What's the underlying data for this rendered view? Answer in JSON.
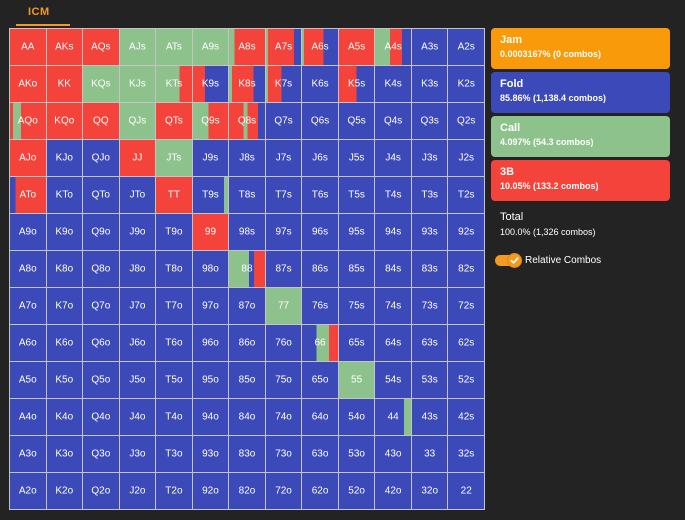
{
  "tab": {
    "label": "ICM"
  },
  "colors": {
    "jam": "#f99a0a",
    "fold": "#3c49b9",
    "call": "#8ec28c",
    "raise": "#f4433a",
    "accent": "#f39a21"
  },
  "legend": [
    {
      "key": "jam",
      "name": "Jam",
      "stat": "0.0003167% (0 combos)"
    },
    {
      "key": "fold",
      "name": "Fold",
      "stat": "85.86% (1,138.4 combos)"
    },
    {
      "key": "call",
      "name": "Call",
      "stat": "4.097% (54.3 combos)"
    },
    {
      "key": "raise",
      "name": "3B",
      "stat": "10.05% (133.2 combos)"
    }
  ],
  "total": {
    "label": "Total",
    "stat": "100.0% (1,326 combos)"
  },
  "toggle": {
    "label": "Relative Combos",
    "on": true,
    "icon": "check-icon"
  },
  "grid": {
    "rows": [
      [
        "AA",
        "AKs",
        "AQs",
        "AJs",
        "ATs",
        "A9s",
        "A8s",
        "A7s",
        "A6s",
        "A5s",
        "A4s",
        "A3s",
        "A2s"
      ],
      [
        "AKo",
        "KK",
        "KQs",
        "KJs",
        "KTs",
        "K9s",
        "K8s",
        "K7s",
        "K6s",
        "K5s",
        "K4s",
        "K3s",
        "K2s"
      ],
      [
        "AQo",
        "KQo",
        "QQ",
        "QJs",
        "QTs",
        "Q9s",
        "Q8s",
        "Q7s",
        "Q6s",
        "Q5s",
        "Q4s",
        "Q3s",
        "Q2s"
      ],
      [
        "AJo",
        "KJo",
        "QJo",
        "JJ",
        "JTs",
        "J9s",
        "J8s",
        "J7s",
        "J6s",
        "J5s",
        "J4s",
        "J3s",
        "J2s"
      ],
      [
        "ATo",
        "KTo",
        "QTo",
        "JTo",
        "TT",
        "T9s",
        "T8s",
        "T7s",
        "T6s",
        "T5s",
        "T4s",
        "T3s",
        "T2s"
      ],
      [
        "A9o",
        "K9o",
        "Q9o",
        "J9o",
        "T9o",
        "99",
        "98s",
        "97s",
        "96s",
        "95s",
        "94s",
        "93s",
        "92s"
      ],
      [
        "A8o",
        "K8o",
        "Q8o",
        "J8o",
        "T8o",
        "98o",
        "88",
        "87s",
        "86s",
        "85s",
        "84s",
        "83s",
        "82s"
      ],
      [
        "A7o",
        "K7o",
        "Q7o",
        "J7o",
        "T7o",
        "97o",
        "87o",
        "77",
        "76s",
        "75s",
        "74s",
        "73s",
        "72s"
      ],
      [
        "A6o",
        "K6o",
        "Q6o",
        "J6o",
        "T6o",
        "96o",
        "86o",
        "76o",
        "66",
        "65s",
        "64s",
        "63s",
        "62s"
      ],
      [
        "A5o",
        "K5o",
        "Q5o",
        "J5o",
        "T5o",
        "95o",
        "85o",
        "75o",
        "65o",
        "55",
        "54s",
        "53s",
        "52s"
      ],
      [
        "A4o",
        "K4o",
        "Q4o",
        "J4o",
        "T4o",
        "94o",
        "84o",
        "74o",
        "64o",
        "54o",
        "44",
        "43s",
        "42s"
      ],
      [
        "A3o",
        "K3o",
        "Q3o",
        "J3o",
        "T3o",
        "93o",
        "83o",
        "73o",
        "63o",
        "53o",
        "43o",
        "33",
        "32s"
      ],
      [
        "A2o",
        "K2o",
        "Q2o",
        "J2o",
        "T2o",
        "92o",
        "82o",
        "72o",
        "62o",
        "52o",
        "42o",
        "32o",
        "22"
      ]
    ],
    "mixes": {
      "AA": [
        [
          "raise",
          100
        ]
      ],
      "AKs": [
        [
          "raise",
          100
        ]
      ],
      "AQs": [
        [
          "raise",
          100
        ]
      ],
      "AJs": [
        [
          "call",
          100
        ]
      ],
      "ATs": [
        [
          "call",
          100
        ]
      ],
      "A9s": [
        [
          "call",
          100
        ]
      ],
      "A8s": [
        [
          "call",
          15
        ],
        [
          "raise",
          85
        ]
      ],
      "A7s": [
        [
          "call",
          5
        ],
        [
          "raise",
          75
        ],
        [
          "fold",
          20
        ]
      ],
      "A6s": [
        [
          "call",
          5
        ],
        [
          "raise",
          55
        ],
        [
          "fold",
          40
        ]
      ],
      "A5s": [
        [
          "raise",
          100
        ]
      ],
      "A4s": [
        [
          "call",
          42
        ],
        [
          "raise",
          33
        ],
        [
          "fold",
          25
        ]
      ],
      "AKo": [
        [
          "raise",
          100
        ]
      ],
      "KK": [
        [
          "raise",
          100
        ]
      ],
      "KQs": [
        [
          "call",
          100
        ]
      ],
      "KJs": [
        [
          "call",
          100
        ]
      ],
      "KTs": [
        [
          "call",
          65
        ],
        [
          "raise",
          35
        ]
      ],
      "K9s": [
        [
          "raise",
          35
        ],
        [
          "fold",
          65
        ]
      ],
      "K8s": [
        [
          "call",
          8
        ],
        [
          "raise",
          60
        ],
        [
          "fold",
          32
        ]
      ],
      "K7s": [
        [
          "call",
          5
        ],
        [
          "raise",
          40
        ],
        [
          "fold",
          55
        ]
      ],
      "K6s": [
        [
          "fold",
          100
        ]
      ],
      "K5s": [
        [
          "raise",
          50
        ],
        [
          "fold",
          50
        ]
      ],
      "AQo": [
        [
          "raise",
          8
        ],
        [
          "call",
          22
        ],
        [
          "raise",
          70
        ]
      ],
      "KQo": [
        [
          "raise",
          100
        ]
      ],
      "QQ": [
        [
          "raise",
          100
        ]
      ],
      "QJs": [
        [
          "call",
          100
        ]
      ],
      "QTs": [
        [
          "raise",
          100
        ]
      ],
      "Q9s": [
        [
          "call",
          45
        ],
        [
          "raise",
          55
        ]
      ],
      "Q8s": [
        [
          "raise",
          40
        ],
        [
          "call",
          12
        ],
        [
          "raise",
          28
        ],
        [
          "fold",
          20
        ]
      ],
      "AJo": [
        [
          "raise",
          100
        ]
      ],
      "JJ": [
        [
          "raise",
          100
        ]
      ],
      "JTs": [
        [
          "call",
          100
        ]
      ],
      "ATo": [
        [
          "fold",
          15
        ],
        [
          "raise",
          85
        ]
      ],
      "TT": [
        [
          "raise",
          100
        ]
      ],
      "T9s": [
        [
          "fold",
          88
        ],
        [
          "call",
          12
        ]
      ],
      "99": [
        [
          "raise",
          100
        ]
      ],
      "88": [
        [
          "call",
          55
        ],
        [
          "fold",
          15
        ],
        [
          "raise",
          30
        ]
      ],
      "77": [
        [
          "call",
          100
        ]
      ],
      "66": [
        [
          "fold",
          40
        ],
        [
          "call",
          35
        ],
        [
          "raise",
          25
        ]
      ],
      "55": [
        [
          "call",
          100
        ]
      ],
      "44": [
        [
          "fold",
          80
        ],
        [
          "call",
          20
        ]
      ]
    }
  }
}
